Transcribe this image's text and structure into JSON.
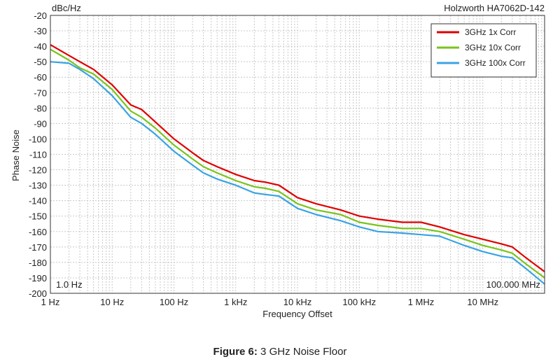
{
  "chart_data": {
    "type": "line",
    "title": "Holzworth HA7062D-142",
    "ylabel": "Phase Noise",
    "yunit": "dBc/Hz",
    "xlabel": "Frequency Offset",
    "xscale": "log",
    "xlim": [
      1,
      100000000
    ],
    "ylim": [
      -200,
      -20
    ],
    "grid": true,
    "legend_position": "top-right",
    "x_ticks": [
      1,
      10,
      100,
      1000,
      10000,
      100000,
      1000000,
      10000000
    ],
    "x_tick_labels": [
      "1 Hz",
      "10 Hz",
      "100 Hz",
      "1 kHz",
      "10 kHz",
      "100 kHz",
      "1 MHz",
      "10 MHz"
    ],
    "y_ticks": [
      -20,
      -30,
      -40,
      -50,
      -60,
      -70,
      -80,
      -90,
      -100,
      -110,
      -120,
      -130,
      -140,
      -150,
      -160,
      -170,
      -180,
      -190,
      -200
    ],
    "y_tick_labels": [
      "-20",
      "-30",
      "-40",
      "-50",
      "-60",
      "-70",
      "-80",
      "-90",
      "-100",
      "-110",
      "-120",
      "-130",
      "-140",
      "-150",
      "-160",
      "-170",
      "-180",
      "-190",
      "-200"
    ],
    "start_label": "1.0 Hz",
    "stop_label": "100.000 MHz",
    "x": [
      1,
      2,
      3,
      5,
      10,
      20,
      30,
      50,
      100,
      200,
      300,
      500,
      1000,
      2000,
      3000,
      5000,
      10000,
      20000,
      50000,
      100000,
      200000,
      500000,
      1000000,
      2000000,
      5000000,
      10000000,
      20000000,
      30000000,
      50000000,
      100000000
    ],
    "series": [
      {
        "name": "3GHz 1x Corr",
        "color": "#e00000",
        "values": [
          -39,
          -46,
          -50,
          -55,
          -65,
          -78,
          -81,
          -89,
          -100,
          -109,
          -114,
          -118,
          -123,
          -127,
          -128,
          -130,
          -138,
          -142,
          -146,
          -150,
          -152,
          -154,
          -154,
          -157,
          -162,
          -165,
          -168,
          -170,
          -177,
          -186
        ]
      },
      {
        "name": "3GHz 10x Corr",
        "color": "#7ac31e",
        "values": [
          -42,
          -49,
          -54,
          -58,
          -68,
          -82,
          -86,
          -93,
          -104,
          -113,
          -118,
          -122,
          -127,
          -131,
          -132,
          -134,
          -142,
          -146,
          -149,
          -154,
          -156,
          -158,
          -158,
          -160,
          -165,
          -169,
          -172,
          -174,
          -181,
          -190
        ]
      },
      {
        "name": "3GHz 100x Corr",
        "color": "#3aa3e3",
        "values": [
          -50,
          -51,
          -55,
          -61,
          -72,
          -86,
          -90,
          -97,
          -108,
          -117,
          -122,
          -126,
          -130,
          -135,
          -136,
          -137,
          -145,
          -149,
          -153,
          -157,
          -160,
          -161,
          -162,
          -163,
          -169,
          -173,
          -176,
          -177,
          -184,
          -194
        ]
      }
    ]
  },
  "caption": {
    "prefix": "Figure 6:",
    "text": " 3 GHz Noise Floor"
  }
}
